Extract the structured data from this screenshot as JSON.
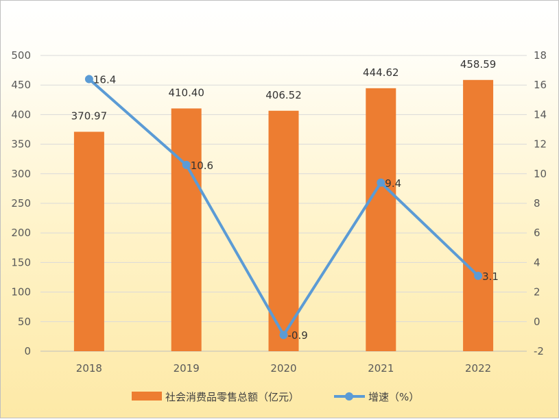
{
  "chart_data": {
    "type": "bar",
    "categories": [
      "2018",
      "2019",
      "2020",
      "2021",
      "2022"
    ],
    "series": [
      {
        "name": "社会消费品零售总额（亿元）",
        "type": "bar",
        "axis": "left",
        "values": [
          370.97,
          410.4,
          406.52,
          444.62,
          458.59
        ],
        "labels": [
          "370.97",
          "410.40",
          "406.52",
          "444.62",
          "458.59"
        ],
        "color": "#ED7D31"
      },
      {
        "name": "增速（%）",
        "type": "line",
        "axis": "right",
        "values": [
          16.4,
          10.6,
          -0.9,
          9.4,
          3.1
        ],
        "labels": [
          "16.4",
          "10.6",
          "-0.9",
          "9.4",
          "3.1"
        ],
        "color": "#5B9BD5"
      }
    ],
    "y_left": {
      "min": 0,
      "max": 500,
      "step": 50
    },
    "y_right": {
      "min": -2,
      "max": 18,
      "step": 2
    },
    "grid": true,
    "legend": "bottom"
  }
}
